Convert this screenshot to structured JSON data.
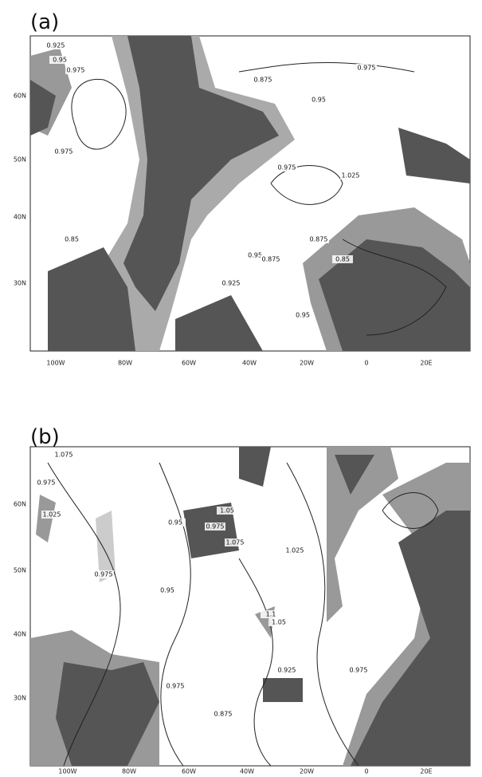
{
  "panels": [
    {
      "label": "(a)",
      "xticks": [
        "100W",
        "80W",
        "60W",
        "40W",
        "20W",
        "0",
        "20E"
      ],
      "yticks": [
        "60N",
        "50N",
        "40N",
        "30N"
      ],
      "contour_labels": [
        "0.95",
        "0.975",
        "0.925",
        "0.875",
        "0.95",
        "0.975",
        "0.975",
        "1.025",
        "0.875",
        "0.95",
        "0.875",
        "0.85",
        "0.975",
        "0.85",
        "0.925",
        "0.95"
      ]
    },
    {
      "label": "(b)",
      "xticks": [
        "100W",
        "80W",
        "60W",
        "40W",
        "20W",
        "0",
        "20E"
      ],
      "yticks": [
        "60N",
        "50N",
        "40N",
        "30N"
      ],
      "contour_labels": [
        "1.075",
        "0.975",
        "1.025",
        "1.05",
        "0.95",
        "0.975",
        "1.075",
        "1.025",
        "0.95",
        "0.975",
        "1.1",
        "0.975",
        "0.925",
        "0.875",
        "1.05",
        "0.975"
      ]
    }
  ]
}
